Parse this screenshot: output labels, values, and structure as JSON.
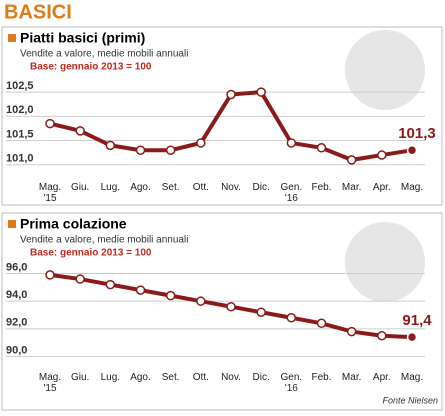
{
  "title": "BASICI",
  "source": "Fonte Nielsen",
  "chart_data": [
    {
      "type": "line",
      "title": "Piatti basici (primi)",
      "subtitle": "Vendite a valore, medie mobili annuali",
      "note": "Base: gennaio 2013 = 100",
      "categories": [
        "Mag.\n'15",
        "Giu.",
        "Lug.",
        "Ago.",
        "Set.",
        "Ott.",
        "Nov.",
        "Dic.",
        "Gen.\n'16",
        "Feb.",
        "Mar.",
        "Apr.",
        "Mag."
      ],
      "values": [
        101.85,
        101.7,
        101.4,
        101.3,
        101.3,
        101.45,
        102.45,
        102.5,
        101.45,
        101.35,
        101.1,
        101.2,
        101.3
      ],
      "value_labels": [
        null,
        null,
        null,
        null,
        null,
        null,
        null,
        null,
        null,
        null,
        null,
        null,
        "101,3"
      ],
      "color": "#8b1a1a",
      "ylim": [
        100.85,
        102.75
      ],
      "yticks": [
        {
          "value": 101,
          "label": "101,0"
        },
        {
          "value": 101.5,
          "label": "101,5"
        },
        {
          "value": 102,
          "label": "102,0"
        },
        {
          "value": 102.5,
          "label": "102,5"
        }
      ],
      "grid": true
    },
    {
      "type": "line",
      "title": "Prima colazione",
      "subtitle": "Vendite a valore, medie mobili annuali",
      "note": "Base: gennaio 2013 = 100",
      "categories": [
        "Mag.\n'15",
        "Giu.",
        "Lug.",
        "Ago.",
        "Set.",
        "Ott.",
        "Nov.",
        "Dic.",
        "Gen.\n'16",
        "Feb.",
        "Mar.",
        "Apr.",
        "Mag."
      ],
      "values": [
        95.9,
        95.6,
        95.2,
        94.8,
        94.4,
        94.0,
        93.6,
        93.2,
        92.8,
        92.4,
        91.8,
        91.5,
        91.4
      ],
      "value_labels": [
        null,
        null,
        null,
        null,
        null,
        null,
        null,
        null,
        null,
        null,
        null,
        null,
        "91,4"
      ],
      "color": "#8b1a1a",
      "ylim": [
        89.6,
        96.4
      ],
      "yticks": [
        {
          "value": 90,
          "label": "90,0"
        },
        {
          "value": 92,
          "label": "92,0"
        },
        {
          "value": 94,
          "label": "94,0"
        },
        {
          "value": 96,
          "label": "96,0"
        }
      ],
      "grid": true
    }
  ]
}
